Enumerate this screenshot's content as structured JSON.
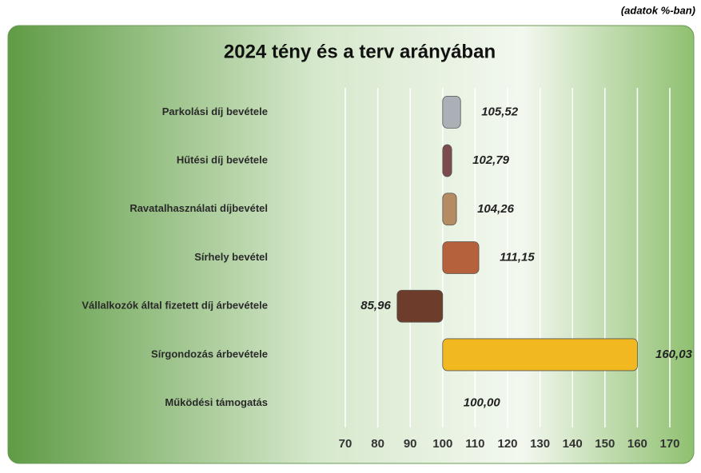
{
  "chart_data": {
    "type": "bar",
    "orientation": "horizontal",
    "title": "2024 tény és a terv arányában",
    "subtitle": "(adatok %-ban)",
    "categories": [
      "Parkolási díj bevétele",
      "Hűtési díj bevétele",
      "Ravatalhasználati díjbevétel",
      "Sírhely bevétel",
      "Vállalkozók által fizetett díj árbevétele",
      "Sírgondozás árbevétele",
      "Működési támogatás"
    ],
    "values": [
      105.52,
      102.79,
      104.26,
      111.15,
      85.96,
      160.03,
      100.0
    ],
    "value_labels": [
      "105,52",
      "102,79",
      "104,26",
      "111,15",
      "85,96",
      "160,03",
      "100,00"
    ],
    "colors": [
      "#a9b0b6",
      "#7c4b4e",
      "#b48b62",
      "#b5623c",
      "#6e3c2a",
      "#f2b820",
      "#999999"
    ],
    "bar_base": 100,
    "xlim": [
      70,
      170
    ],
    "xticks": [
      70,
      80,
      90,
      100,
      110,
      120,
      130,
      140,
      150,
      160,
      170
    ],
    "grid": true
  }
}
